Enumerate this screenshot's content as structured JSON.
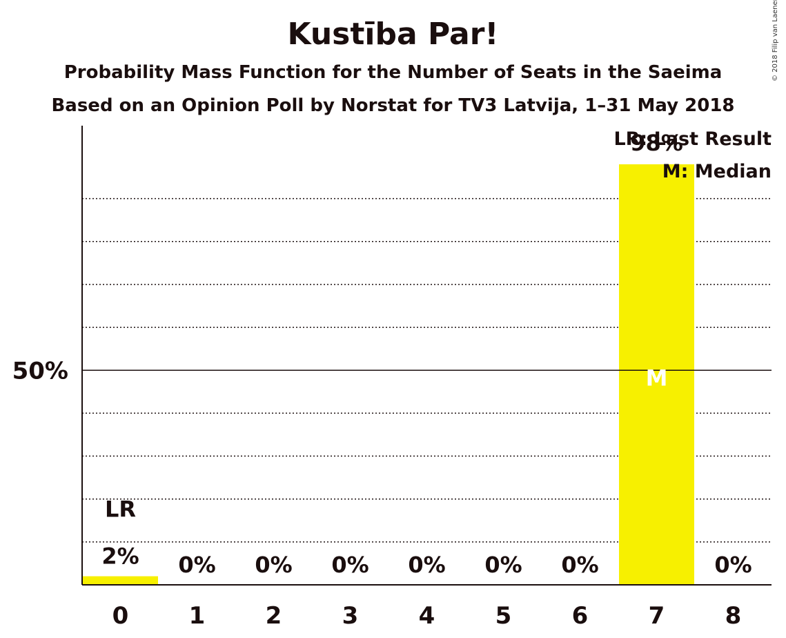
{
  "chart_data": {
    "type": "bar",
    "title": "Kustība Par!",
    "subtitle": "Probability Mass Function for the Number of Seats in the Saeima",
    "subtitle2": "Based on an Opinion Poll by Norstat for TV3 Latvija, 1–31 May 2018",
    "categories": [
      "0",
      "1",
      "2",
      "3",
      "4",
      "5",
      "6",
      "7",
      "8"
    ],
    "values": [
      2,
      0,
      0,
      0,
      0,
      0,
      0,
      98,
      0
    ],
    "value_labels": [
      "2%",
      "0%",
      "0%",
      "0%",
      "0%",
      "0%",
      "0%",
      "98%",
      "0%"
    ],
    "ylim": [
      0,
      107
    ],
    "y_tick_label": "50%",
    "y_tick_value": 50,
    "gridlines": [
      10,
      20,
      30,
      40,
      60,
      70,
      80,
      90
    ],
    "last_result_seat": "0",
    "last_result_label": "LR",
    "median_seat": "7",
    "median_label": "M",
    "legend": [
      "LR: Last Result",
      "M: Median"
    ],
    "legend_position": "top-right",
    "bar_color": "#f7f000"
  },
  "copyright": "© 2018 Filip van Laenen"
}
